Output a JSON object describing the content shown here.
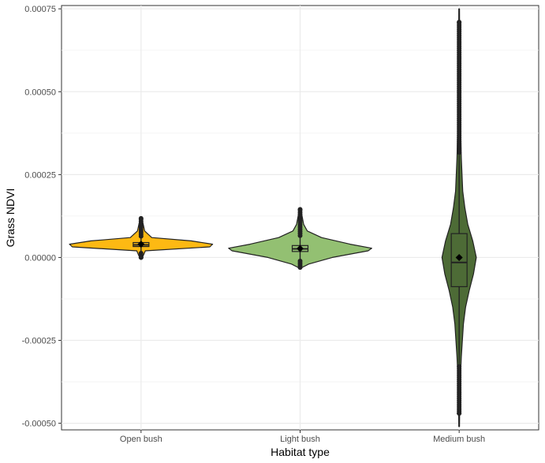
{
  "chart_data": {
    "type": "violin",
    "xlabel": "Habitat type",
    "ylabel": "Grass NDVI",
    "ylim": [
      -0.00052,
      0.00076
    ],
    "yticks": [
      -0.0005,
      -0.00025,
      0.0,
      0.00025,
      0.0005,
      0.00075
    ],
    "ytick_labels": [
      "-0.00050",
      "-0.00025",
      "0.00000",
      "0.00025",
      "0.00050",
      "0.00075"
    ],
    "grid": true,
    "categories": [
      "Open bush",
      "Light bush",
      "Medium bush"
    ],
    "series": [
      {
        "category": "Open bush",
        "color": "#FDB913",
        "box": {
          "q1": 3.3e-05,
          "median": 3.8e-05,
          "q3": 4.5e-05,
          "mean": 4e-05
        },
        "range": [
          0.0,
          0.000118
        ],
        "outliers_range": [
          0.0,
          0.000118
        ],
        "density": [
          [
            0.0,
            0.02
          ],
          [
            2e-05,
            0.06
          ],
          [
            3.2e-05,
            0.96
          ],
          [
            4e-05,
            1.0
          ],
          [
            5e-05,
            0.7
          ],
          [
            6e-05,
            0.15
          ],
          [
            8e-05,
            0.05
          ],
          [
            0.0001,
            0.03
          ],
          [
            0.000118,
            0.01
          ]
        ]
      },
      {
        "category": "Light bush",
        "color": "#93C072",
        "box": {
          "q1": 1.8e-05,
          "median": 2.6e-05,
          "q3": 3.6e-05,
          "mean": 2.7e-05
        },
        "range": [
          -3e-05,
          0.000145
        ],
        "outliers_range": [
          -3e-05,
          0.000145
        ],
        "density": [
          [
            -3e-05,
            0.03
          ],
          [
            -2e-05,
            0.12
          ],
          [
            0.0,
            0.45
          ],
          [
            2e-05,
            0.95
          ],
          [
            2.8e-05,
            1.0
          ],
          [
            4e-05,
            0.7
          ],
          [
            6e-05,
            0.3
          ],
          [
            8e-05,
            0.1
          ],
          [
            0.0001,
            0.05
          ],
          [
            0.000145,
            0.01
          ]
        ]
      },
      {
        "category": "Medium bush",
        "color": "#4D6B36",
        "box": {
          "q1": -8.8e-05,
          "median": -1.5e-05,
          "q3": 7.2e-05,
          "mean": 0.0
        },
        "range": [
          -0.00051,
          0.00075
        ],
        "outliers_range": [
          -0.00047,
          0.00071
        ],
        "density": [
          [
            -0.00051,
            0.005
          ],
          [
            -0.0004,
            0.01
          ],
          [
            -0.0003,
            0.03
          ],
          [
            -0.0002,
            0.06
          ],
          [
            -0.00015,
            0.09
          ],
          [
            -0.0001,
            0.14
          ],
          [
            -5e-05,
            0.2
          ],
          [
            0.0,
            0.24
          ],
          [
            5e-05,
            0.19
          ],
          [
            0.0001,
            0.12
          ],
          [
            0.00015,
            0.08
          ],
          [
            0.0002,
            0.05
          ],
          [
            0.0003,
            0.03
          ],
          [
            0.0004,
            0.02
          ],
          [
            0.0005,
            0.01
          ],
          [
            0.00075,
            0.005
          ]
        ]
      }
    ]
  }
}
